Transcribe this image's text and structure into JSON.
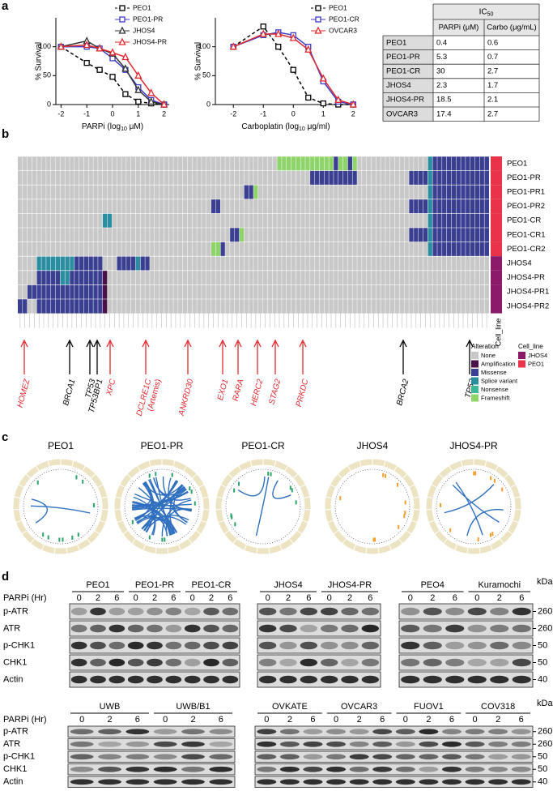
{
  "panel_labels": [
    "a",
    "b",
    "c",
    "d"
  ],
  "chart_data": [
    {
      "type": "line",
      "y_label": "% Survival",
      "x_label": [
        "PARPi (log",
        "10",
        " μM)"
      ],
      "x": [
        -2,
        -1,
        -0.5,
        0,
        0.5,
        1,
        1.5,
        2
      ],
      "xlim": [
        -2.2,
        2.2
      ],
      "ylim": [
        0,
        150
      ],
      "xticks": [
        -2,
        -1,
        0,
        1,
        2
      ],
      "yticks": [
        0,
        50,
        100
      ],
      "series": [
        {
          "name": "PEO1",
          "color": "#000000",
          "marker": "square",
          "dash": true,
          "values": [
            100,
            72,
            60,
            48,
            18,
            5,
            2,
            0
          ]
        },
        {
          "name": "PEO1-PR",
          "color": "#3b3bc8",
          "marker": "square",
          "dash": false,
          "values": [
            100,
            100,
            97,
            80,
            60,
            30,
            8,
            0
          ]
        },
        {
          "name": "JHOS4",
          "color": "#333333",
          "marker": "triangle",
          "dash": false,
          "values": [
            100,
            110,
            97,
            88,
            62,
            25,
            5,
            0
          ]
        },
        {
          "name": "JHOS4-PR",
          "color": "#e0282e",
          "marker": "triangle",
          "dash": false,
          "values": [
            100,
            103,
            97,
            90,
            82,
            50,
            20,
            0
          ]
        }
      ]
    },
    {
      "type": "line",
      "y_label": "% Survival",
      "x_label": [
        "Carboplatin (log",
        "10",
        " μg/ml)"
      ],
      "x": [
        -2,
        -1,
        -0.5,
        0,
        0.5,
        1,
        1.5,
        2
      ],
      "xlim": [
        -2.6,
        2.1
      ],
      "ylim": [
        0,
        150
      ],
      "xticks": [
        -2,
        -1,
        0,
        1,
        2
      ],
      "yticks": [
        0,
        50,
        100
      ],
      "series": [
        {
          "name": "PEO1",
          "color": "#000000",
          "marker": "square",
          "dash": true,
          "values": [
            100,
            135,
            100,
            60,
            12,
            2,
            0,
            0
          ]
        },
        {
          "name": "PEO1-CR",
          "color": "#3b3bc8",
          "marker": "square",
          "dash": false,
          "values": [
            100,
            120,
            125,
            120,
            100,
            40,
            5,
            0
          ]
        },
        {
          "name": "OVCAR3",
          "color": "#e0282e",
          "marker": "triangle",
          "dash": false,
          "values": [
            100,
            122,
            122,
            115,
            95,
            45,
            8,
            0
          ]
        }
      ]
    }
  ],
  "ic50_table": {
    "title": [
      "IC",
      "50"
    ],
    "columns": [
      "PARPi (μM)",
      "Carbo (μg/mL)"
    ],
    "rows": [
      [
        "PEO1",
        0.4,
        0.6
      ],
      [
        "PEO1-PR",
        5.3,
        0.7
      ],
      [
        "PEO1-CR",
        30,
        2.7
      ],
      [
        "JHOS4",
        2.3,
        1.7
      ],
      [
        "JHOS4-PR",
        18.5,
        2.1
      ],
      [
        "OVCAR3",
        17.4,
        2.7
      ]
    ]
  },
  "heatmap": {
    "row_labels": [
      "PEO1",
      "PEO1-PR",
      "PEO1-PR1",
      "PEO1-PR2",
      "PEO1-CR",
      "PEO1-CR1",
      "PEO1-CR2",
      "JHOS4",
      "JHOS4-PR",
      "JHOS4-PR1",
      "JHOS4-PR2"
    ],
    "row_cell_line": [
      1,
      1,
      1,
      1,
      1,
      1,
      1,
      0,
      0,
      0,
      0
    ],
    "cell_line_label": "Cell_line",
    "arrows": [
      {
        "gene": "HOMEZ",
        "color": "#e0282e"
      },
      {
        "gene": "BRCA1",
        "color": "#000000"
      },
      {
        "gene": "TP53",
        "color": "#000000"
      },
      {
        "gene": "TP53BP1",
        "color": "#000000"
      },
      {
        "gene": "XPC",
        "color": "#e0282e"
      },
      {
        "gene": "DCLRE1C",
        "note": "(Artemis)",
        "color": "#e0282e"
      },
      {
        "gene": "ANKRD30",
        "color": "#e0282e"
      },
      {
        "gene": "EXO1",
        "color": "#e0282e"
      },
      {
        "gene": "RARA",
        "color": "#e0282e"
      },
      {
        "gene": "HERC2",
        "color": "#e0282e"
      },
      {
        "gene": "STAG2",
        "color": "#e0282e"
      },
      {
        "gene": "PRKDC",
        "color": "#e0282e"
      },
      {
        "gene": "BRCA2",
        "color": "#000000"
      },
      {
        "gene": "TP53",
        "color": "#000000"
      }
    ],
    "alteration_title": "Alteration",
    "alterations": [
      {
        "name": "None",
        "color": "#c8c8c8"
      },
      {
        "name": "Amplification",
        "color": "#4b1046"
      },
      {
        "name": "Missense",
        "color": "#3b3f91"
      },
      {
        "name": "Splice variant",
        "color": "#2b8ea0"
      },
      {
        "name": "Nonsense",
        "color": "#3cb896"
      },
      {
        "name": "Frameshift",
        "color": "#8fd46b"
      }
    ],
    "cell_line_title": "Cell_line",
    "cell_lines": [
      {
        "name": "JHOS4",
        "color": "#8b1a6b"
      },
      {
        "name": "PEO1",
        "color": "#e8334a"
      }
    ]
  },
  "circos": {
    "titles": [
      "PEO1",
      "PEO1-PR",
      "PEO1-CR",
      "JHOS4",
      "JHOS4-PR"
    ]
  },
  "western": {
    "top": {
      "time_label": "PARPi (Hr)",
      "timepoints": [
        "0",
        "2",
        "6"
      ],
      "blots": [
        [
          "PEO1",
          "PEO1-PR",
          "PEO1-CR"
        ],
        [
          "JHOS4",
          "JHOS4-PR"
        ],
        [
          "PEO4",
          "Kuramochi"
        ]
      ],
      "rows": [
        "p-ATR",
        "ATR",
        "p-CHK1",
        "CHK1",
        "Actin"
      ],
      "kda_label": "kDa",
      "kda": [
        260,
        260,
        50,
        50,
        40
      ]
    },
    "bottom": {
      "time_label": "PARPi (Hr)",
      "timepoints": [
        "0",
        "2",
        "6"
      ],
      "blots": [
        [
          "UWB",
          "UWB/B1"
        ],
        [
          "OVKATE",
          "OVCAR3",
          "FUOV1",
          "COV318"
        ]
      ],
      "rows": [
        "p-ATR",
        "ATR",
        "p-CHK1",
        "CHK1",
        "Actin"
      ],
      "kda_label": "kDa",
      "kda": [
        260,
        260,
        50,
        50,
        40
      ]
    }
  }
}
